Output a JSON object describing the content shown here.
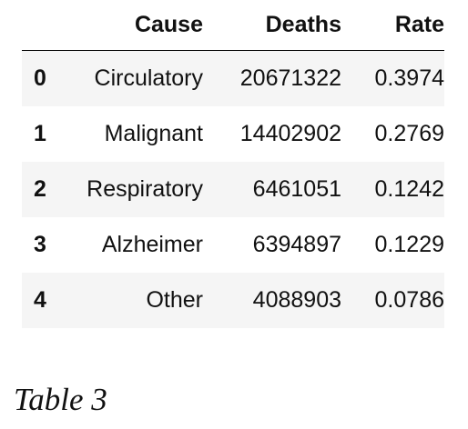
{
  "table": {
    "columns": [
      "",
      "Cause",
      "Deaths",
      "Rate"
    ],
    "rows": [
      {
        "index": "0",
        "cause": "Circulatory",
        "deaths": "20671322",
        "rate": "0.3974"
      },
      {
        "index": "1",
        "cause": "Malignant",
        "deaths": "14402902",
        "rate": "0.2769"
      },
      {
        "index": "2",
        "cause": "Respiratory",
        "deaths": "6461051",
        "rate": "0.1242"
      },
      {
        "index": "3",
        "cause": "Alzheimer",
        "deaths": "6394897",
        "rate": "0.1229"
      },
      {
        "index": "4",
        "cause": "Other",
        "deaths": "4088903",
        "rate": "0.0786"
      }
    ]
  },
  "caption": "Table 3"
}
